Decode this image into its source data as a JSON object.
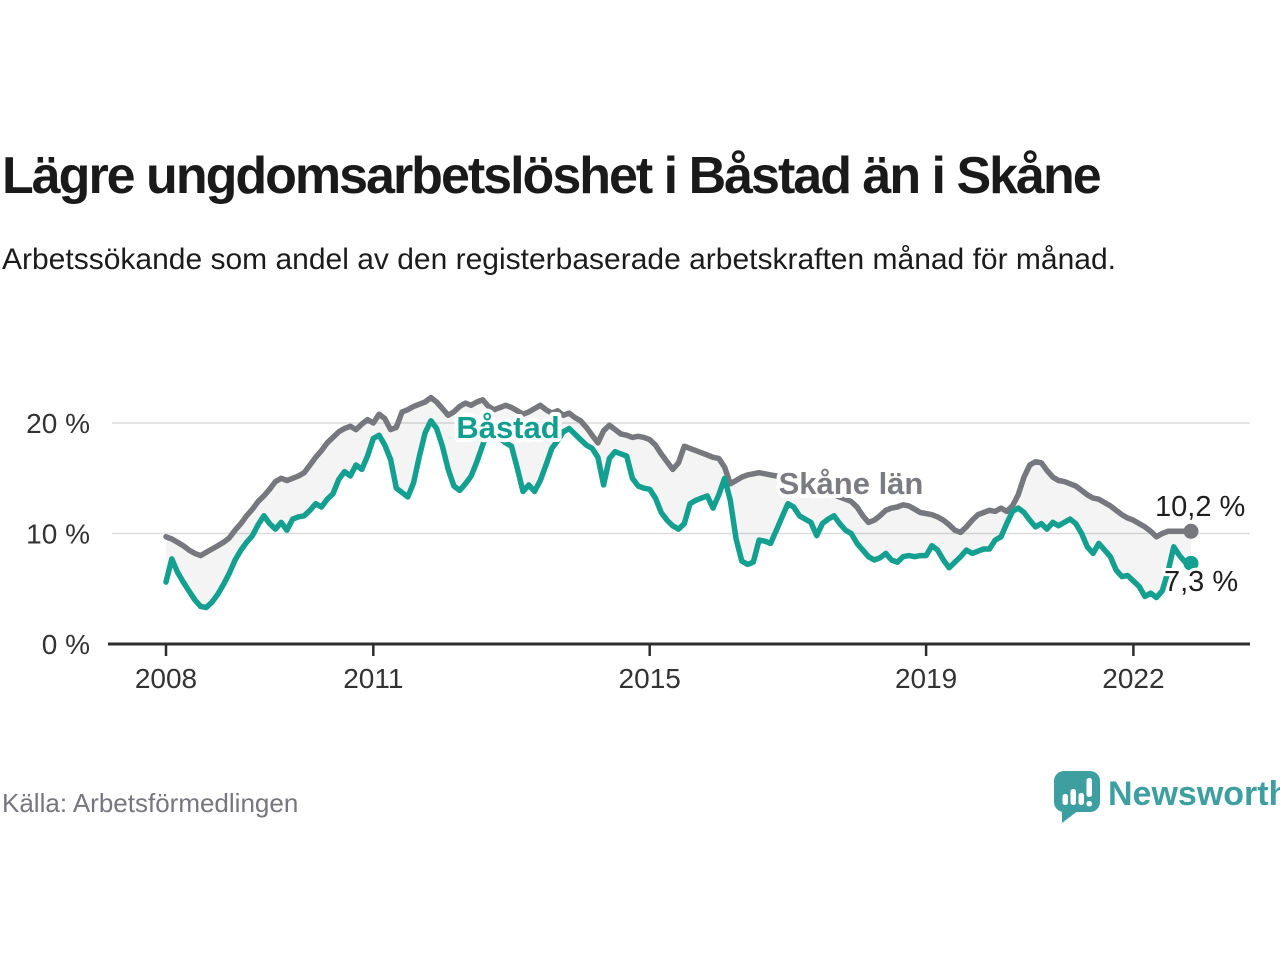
{
  "header": {
    "title": "Lägre ungdomsarbetslöshet i Båstad än i Skåne",
    "subtitle": "Arbetssökande som andel av den registerbaserade arbetskraften månad för månad."
  },
  "footer": {
    "source": "Källa: Arbetsförmedlingen"
  },
  "brand": {
    "name": "Newsworthy",
    "color": "#3e9fa0",
    "icon": "chart-speech-bubble-icon"
  },
  "chart_data": {
    "type": "line",
    "unit": "%",
    "frequency": "monthly",
    "x_start": "2008-01",
    "x_end": "2022-11",
    "grid": "horizontal",
    "ylim": [
      0,
      23.5
    ],
    "area_fill_between_series": true,
    "yticks": [
      {
        "value": 20,
        "label": "20 %"
      },
      {
        "value": 10,
        "label": "10 %"
      },
      {
        "value": 0,
        "label": "0 %"
      }
    ],
    "xticks": [
      {
        "year": 2008,
        "label": "2008"
      },
      {
        "year": 2011,
        "label": "2011"
      },
      {
        "year": 2015,
        "label": "2015"
      },
      {
        "year": 2019,
        "label": "2019"
      },
      {
        "year": 2022,
        "label": "2022"
      }
    ],
    "series": [
      {
        "name": "Skåne län",
        "color": "#77777e",
        "end_value": 10.2,
        "end_label": "10,2 %",
        "values": [
          9.7,
          9.5,
          9.2,
          8.9,
          8.5,
          8.2,
          8.0,
          8.3,
          8.6,
          8.9,
          9.2,
          9.6,
          10.3,
          10.9,
          11.6,
          12.2,
          12.9,
          13.4,
          14.0,
          14.7,
          15.0,
          14.8,
          15.0,
          15.2,
          15.5,
          16.2,
          16.9,
          17.5,
          18.2,
          18.7,
          19.2,
          19.5,
          19.7,
          19.4,
          19.9,
          20.3,
          20.0,
          20.8,
          20.4,
          19.4,
          19.6,
          21.0,
          21.2,
          21.5,
          21.7,
          21.9,
          22.3,
          21.9,
          21.3,
          20.7,
          21.0,
          21.5,
          21.8,
          21.6,
          21.9,
          22.1,
          21.5,
          21.2,
          21.4,
          21.6,
          21.4,
          21.1,
          20.8,
          21.0,
          21.3,
          21.6,
          21.2,
          20.9,
          21.1,
          20.7,
          20.9,
          20.5,
          20.2,
          19.6,
          18.9,
          18.2,
          19.3,
          19.8,
          19.4,
          19.0,
          18.9,
          18.7,
          18.8,
          18.7,
          18.5,
          18.0,
          17.2,
          16.5,
          15.8,
          16.4,
          17.9,
          17.7,
          17.5,
          17.3,
          17.1,
          16.9,
          16.8,
          16.0,
          14.5,
          14.8,
          15.1,
          15.3,
          15.4,
          15.5,
          15.4,
          15.3,
          15.2,
          15.1,
          15.0,
          14.8,
          14.6,
          14.4,
          14.2,
          14.0,
          13.9,
          13.7,
          13.5,
          13.3,
          13.1,
          12.9,
          12.4,
          11.6,
          11.0,
          11.2,
          11.6,
          12.1,
          12.3,
          12.4,
          12.6,
          12.5,
          12.2,
          11.9,
          11.8,
          11.7,
          11.5,
          11.2,
          10.8,
          10.3,
          10.1,
          10.6,
          11.2,
          11.7,
          11.9,
          12.1,
          12.0,
          12.3,
          12.0,
          12.5,
          13.5,
          15.1,
          16.2,
          16.5,
          16.4,
          15.7,
          15.1,
          14.8,
          14.7,
          14.5,
          14.3,
          13.9,
          13.5,
          13.2,
          13.1,
          12.8,
          12.5,
          12.1,
          11.7,
          11.4,
          11.2,
          10.9,
          10.6,
          10.2,
          9.7,
          10.0,
          10.2,
          10.2,
          10.2,
          10.2,
          10.2
        ]
      },
      {
        "name": "Båstad",
        "color": "#14a090",
        "end_value": 7.3,
        "end_label": "7,3 %",
        "values": [
          5.6,
          7.7,
          6.5,
          5.6,
          4.8,
          4.0,
          3.4,
          3.3,
          3.8,
          4.5,
          5.4,
          6.4,
          7.6,
          8.5,
          9.2,
          9.8,
          10.8,
          11.6,
          10.9,
          10.4,
          11.0,
          10.3,
          11.3,
          11.5,
          11.6,
          12.1,
          12.7,
          12.4,
          13.1,
          13.6,
          14.9,
          15.6,
          15.2,
          16.2,
          15.8,
          17.0,
          18.6,
          18.9,
          18.0,
          16.7,
          14.1,
          13.7,
          13.3,
          14.6,
          17.0,
          19.1,
          20.2,
          19.5,
          17.9,
          15.8,
          14.3,
          13.9,
          14.5,
          15.2,
          16.5,
          18.0,
          19.5,
          19.0,
          18.6,
          18.2,
          17.9,
          15.9,
          13.8,
          14.4,
          13.8,
          14.8,
          16.2,
          17.7,
          18.4,
          19.2,
          19.5,
          19.0,
          18.5,
          18.0,
          17.7,
          16.9,
          14.4,
          16.8,
          17.4,
          17.2,
          17.0,
          15.0,
          14.3,
          14.1,
          14.0,
          13.2,
          11.9,
          11.2,
          10.7,
          10.4,
          10.9,
          12.7,
          13.0,
          13.2,
          13.4,
          12.3,
          13.5,
          15.0,
          13.0,
          9.5,
          7.5,
          7.2,
          7.4,
          9.4,
          9.3,
          9.1,
          10.3,
          11.5,
          12.7,
          12.4,
          11.6,
          11.3,
          11.0,
          9.8,
          10.9,
          11.3,
          11.6,
          10.9,
          10.3,
          10.0,
          9.1,
          8.5,
          7.9,
          7.6,
          7.8,
          8.2,
          7.6,
          7.4,
          7.9,
          8.0,
          7.9,
          8.0,
          8.0,
          8.9,
          8.5,
          7.6,
          6.9,
          7.4,
          7.9,
          8.5,
          8.2,
          8.4,
          8.6,
          8.6,
          9.4,
          9.7,
          10.9,
          12.0,
          12.3,
          11.9,
          11.2,
          10.6,
          10.9,
          10.4,
          11.0,
          10.7,
          11.0,
          11.3,
          10.9,
          10.0,
          8.8,
          8.2,
          9.1,
          8.5,
          7.9,
          6.7,
          6.1,
          6.2,
          5.7,
          5.2,
          4.3,
          4.6,
          4.2,
          4.8,
          6.5,
          8.8,
          8.0,
          7.4,
          7.3
        ]
      }
    ]
  }
}
